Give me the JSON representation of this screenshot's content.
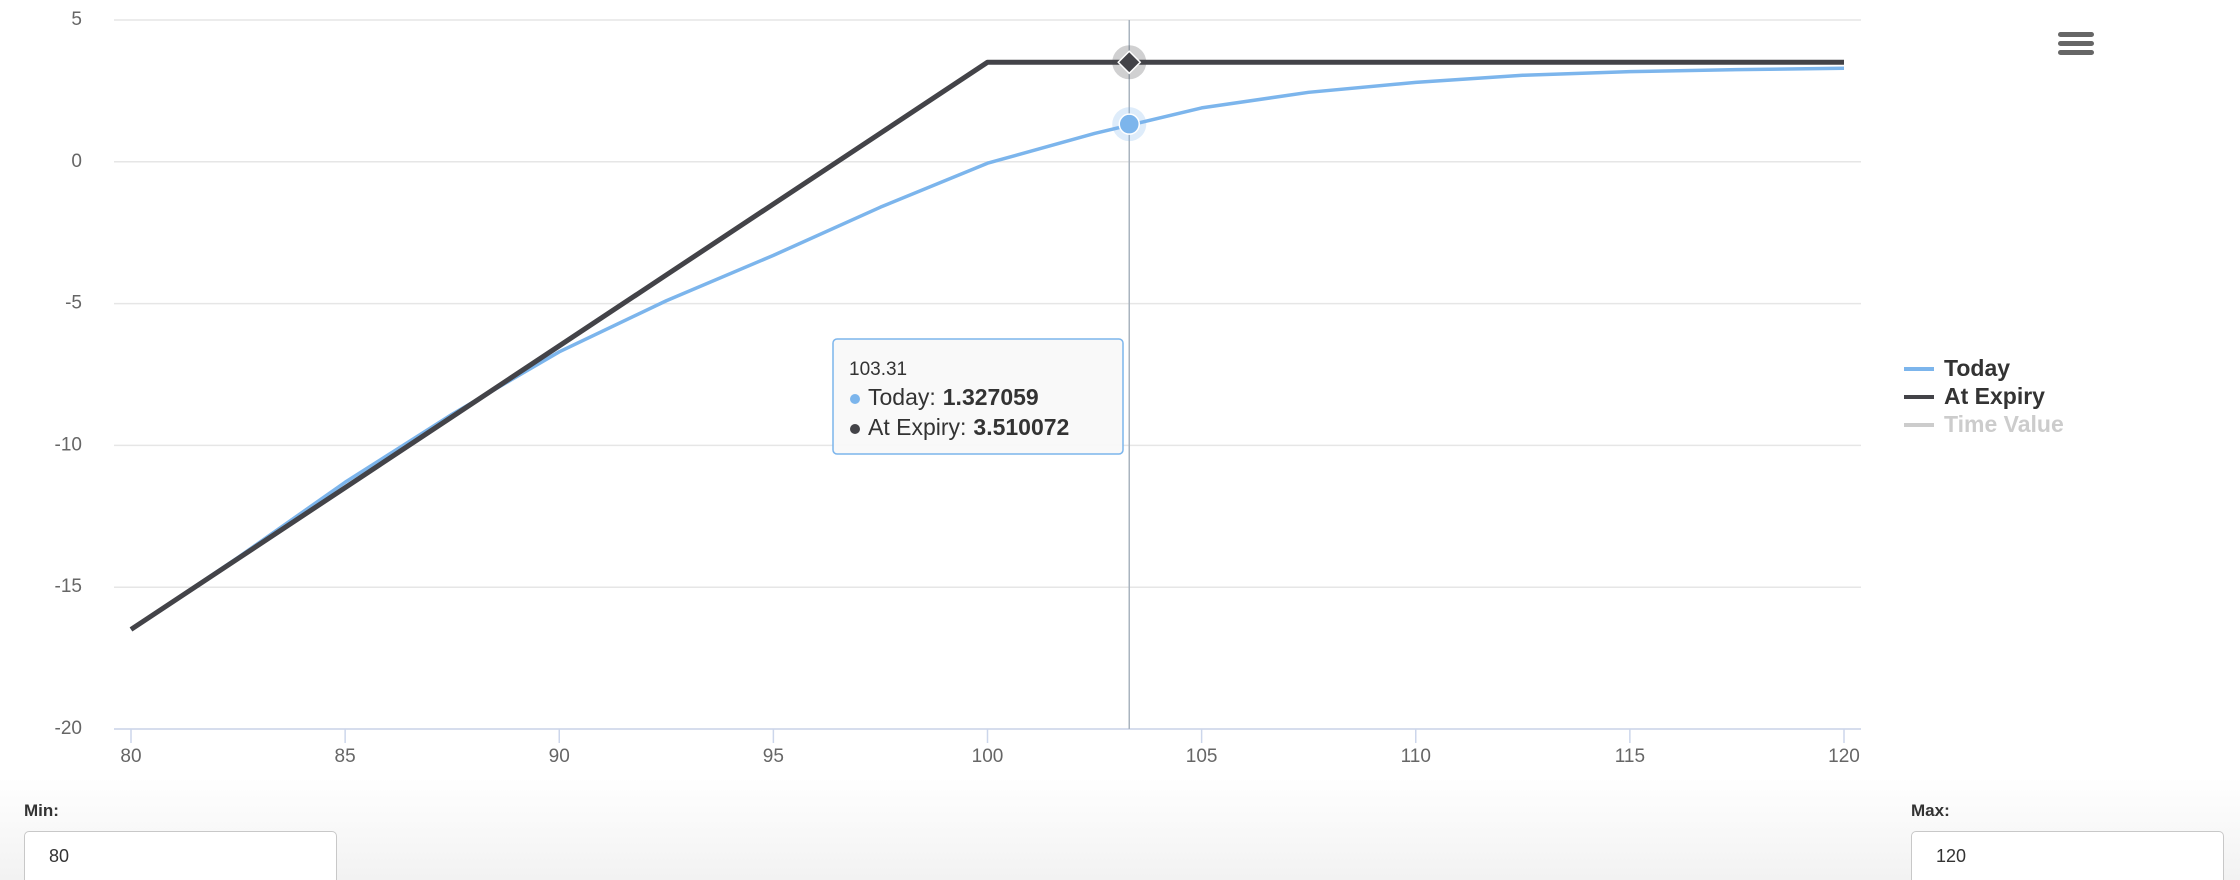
{
  "chart_data": {
    "type": "line",
    "x": [
      80,
      82.5,
      85,
      87.5,
      90,
      92.5,
      95,
      97.5,
      100,
      102.5,
      105,
      107.5,
      110,
      112.5,
      115,
      117.5,
      120
    ],
    "xlim": [
      80,
      120
    ],
    "xticks": [
      80,
      85,
      90,
      95,
      100,
      105,
      110,
      115,
      120
    ],
    "ylim": [
      -20,
      5
    ],
    "yticks": [
      -20,
      -15,
      -10,
      -5,
      0,
      5
    ],
    "grid": true,
    "legend": "right",
    "series": [
      {
        "name": "Today",
        "color": "#7cb5ec",
        "visible": true,
        "values": [
          -16.49,
          -13.95,
          -11.3,
          -8.9,
          -6.7,
          -4.9,
          -3.3,
          -1.6,
          -0.05,
          1.0,
          1.9,
          2.45,
          2.8,
          3.05,
          3.18,
          3.25,
          3.3
        ]
      },
      {
        "name": "At Expiry",
        "color": "#434348",
        "visible": true,
        "values": [
          -16.49,
          -13.99,
          -11.49,
          -8.99,
          -6.49,
          -3.99,
          -1.49,
          1.01,
          3.51,
          3.51,
          3.51,
          3.51,
          3.51,
          3.51,
          3.51,
          3.51,
          3.51
        ]
      },
      {
        "name": "Time Value",
        "color": "#cccccc",
        "visible": false
      }
    ],
    "hover": {
      "x": 103.31,
      "rows": [
        {
          "label": "Today:",
          "value": 1.327059
        },
        {
          "label": "At Expiry:",
          "value": 3.510072
        }
      ]
    }
  },
  "controls": {
    "min": {
      "label": "Min:",
      "value": 80
    },
    "max": {
      "label": "Max:",
      "value": 120
    }
  }
}
